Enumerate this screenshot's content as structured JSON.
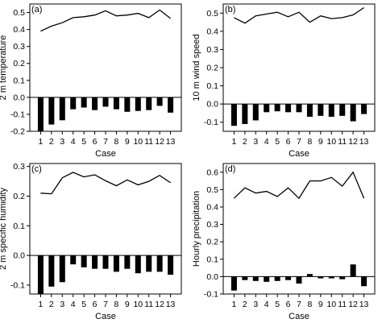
{
  "chart_data": [
    {
      "panel_label": "(a)",
      "type": "bar+line",
      "xlabel": "Case",
      "ylabel": "2 m temperature",
      "ylim": [
        -0.2,
        0.55
      ],
      "yticks": [
        "-0.2",
        "-0.1",
        "0.0",
        "0.1",
        "0.2",
        "0.3",
        "0.4",
        "0.5"
      ],
      "categories": [
        "1",
        "2",
        "3",
        "4",
        "5",
        "6",
        "7",
        "8",
        "9",
        "10",
        "11",
        "12",
        "13"
      ],
      "line_values": [
        0.39,
        0.42,
        0.44,
        0.47,
        0.475,
        0.485,
        0.51,
        0.48,
        0.485,
        0.495,
        0.47,
        0.515,
        0.465
      ],
      "bar_values": [
        -0.2,
        -0.16,
        -0.135,
        -0.07,
        -0.06,
        -0.075,
        -0.055,
        -0.07,
        -0.085,
        -0.08,
        -0.075,
        -0.05,
        -0.09
      ]
    },
    {
      "panel_label": "(b)",
      "type": "bar+line",
      "xlabel": "Case",
      "ylabel": "10 m wind speed",
      "ylim": [
        -0.15,
        0.55
      ],
      "yticks": [
        "-0.1",
        "0.0",
        "0.1",
        "0.2",
        "0.3",
        "0.4",
        "0.5"
      ],
      "categories": [
        "1",
        "2",
        "3",
        "4",
        "5",
        "6",
        "7",
        "8",
        "9",
        "10",
        "11",
        "12",
        "13"
      ],
      "line_values": [
        0.475,
        0.445,
        0.485,
        0.495,
        0.505,
        0.48,
        0.505,
        0.45,
        0.485,
        0.47,
        0.475,
        0.49,
        0.53
      ],
      "bar_values": [
        -0.12,
        -0.11,
        -0.09,
        -0.045,
        -0.04,
        -0.045,
        -0.045,
        -0.07,
        -0.065,
        -0.07,
        -0.065,
        -0.095,
        -0.055
      ]
    },
    {
      "panel_label": "(c)",
      "type": "bar+line",
      "xlabel": "Case",
      "ylabel": "2 m specific humidity",
      "ylim": [
        -0.13,
        0.31
      ],
      "yticks": [
        "-0.1",
        "0.0",
        "0.1",
        "0.2",
        "0.3"
      ],
      "categories": [
        "1",
        "2",
        "3",
        "4",
        "5",
        "6",
        "7",
        "8",
        "9",
        "10",
        "11",
        "12",
        "13"
      ],
      "line_values": [
        0.21,
        0.208,
        0.262,
        0.28,
        0.265,
        0.272,
        0.252,
        0.235,
        0.255,
        0.238,
        0.25,
        0.27,
        0.245
      ],
      "bar_values": [
        -0.13,
        -0.105,
        -0.09,
        -0.03,
        -0.04,
        -0.045,
        -0.045,
        -0.055,
        -0.045,
        -0.06,
        -0.055,
        -0.055,
        -0.065
      ]
    },
    {
      "panel_label": "(d)",
      "type": "bar+line",
      "xlabel": "Case",
      "ylabel": "Hourly precipitation",
      "ylim": [
        -0.1,
        0.65
      ],
      "yticks": [
        "-0.1",
        "0.0",
        "0.1",
        "0.2",
        "0.3",
        "0.4",
        "0.5",
        "0.6"
      ],
      "categories": [
        "1",
        "2",
        "3",
        "4",
        "5",
        "6",
        "7",
        "8",
        "9",
        "10",
        "11",
        "12",
        "13"
      ],
      "line_values": [
        0.45,
        0.51,
        0.48,
        0.49,
        0.46,
        0.51,
        0.45,
        0.55,
        0.55,
        0.57,
        0.52,
        0.6,
        0.45
      ],
      "bar_values": [
        -0.08,
        -0.02,
        -0.025,
        -0.03,
        -0.025,
        -0.02,
        -0.04,
        0.015,
        -0.01,
        -0.01,
        -0.015,
        0.07,
        -0.055
      ]
    }
  ]
}
